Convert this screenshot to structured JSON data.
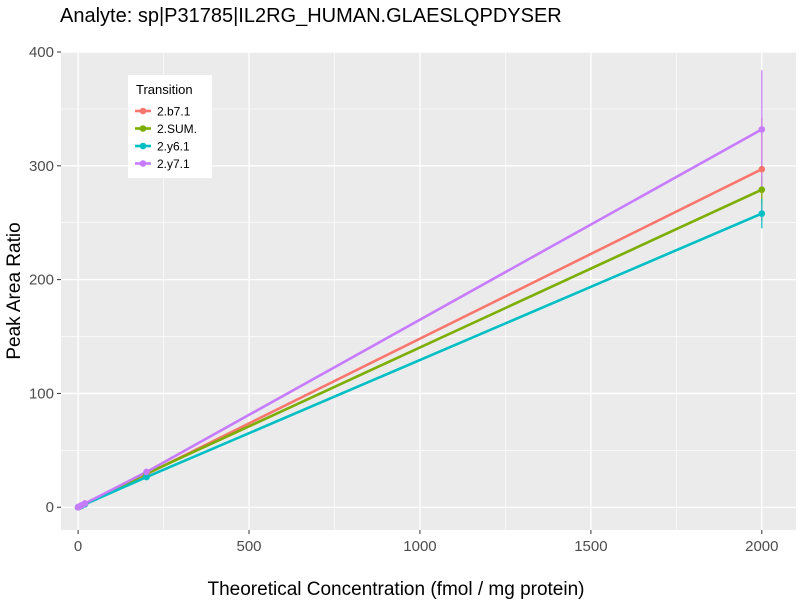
{
  "chart_data": {
    "type": "line",
    "title": "Analyte: sp|P31785|IL2RG_HUMAN.GLAESLQPDYSER",
    "xlabel": "Theoretical Concentration (fmol / mg protein)",
    "ylabel": "Peak Area Ratio",
    "xlim": [
      -50,
      2100
    ],
    "ylim": [
      -20,
      400
    ],
    "xticks": [
      0,
      500,
      1000,
      1500,
      2000
    ],
    "yticks": [
      0,
      100,
      200,
      300,
      400
    ],
    "grid": true,
    "legend": {
      "title": "Transition",
      "position": "top-left"
    },
    "x": [
      0,
      1,
      5,
      10,
      20,
      200,
      2000
    ],
    "series": [
      {
        "name": "2.b7.1",
        "color": "#F8766D",
        "values": [
          0,
          0.15,
          0.7,
          1.5,
          3.0,
          29.0,
          297
        ],
        "error": [
          0,
          0,
          0,
          0,
          0,
          2,
          45
        ]
      },
      {
        "name": "2.SUM.",
        "color": "#7CAE00",
        "values": [
          0,
          0.14,
          0.7,
          1.4,
          2.8,
          29.5,
          279
        ],
        "error": [
          0,
          0,
          0,
          0,
          0,
          1.5,
          12
        ]
      },
      {
        "name": "2.y6.1",
        "color": "#00BFC4",
        "values": [
          0,
          0.13,
          0.6,
          1.3,
          2.6,
          26.5,
          258
        ],
        "error": [
          0,
          0,
          0,
          0,
          0,
          1.5,
          13
        ]
      },
      {
        "name": "2.y7.1",
        "color": "#C77CFF",
        "values": [
          0,
          0.17,
          0.8,
          1.7,
          3.3,
          31.0,
          332
        ],
        "error": [
          0,
          0,
          0,
          0,
          0,
          2,
          52
        ]
      }
    ]
  }
}
